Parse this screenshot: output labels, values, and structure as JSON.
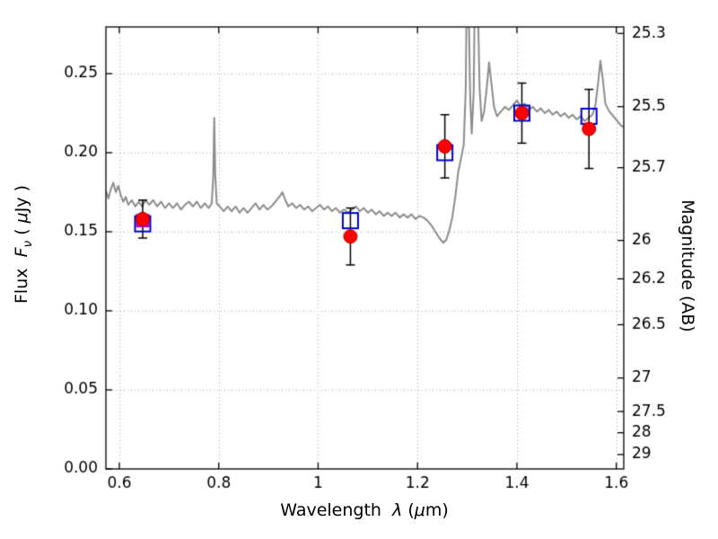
{
  "labels": {
    "left": {
      "flux": "Flux  ",
      "F": "F",
      "nu": "ν",
      "open": " ( ",
      "mu": "μ",
      "jy": "Jy )"
    },
    "bottom": {
      "wavelength": "Wavelength  ",
      "lambda": "λ",
      "open": " (",
      "mu": "μ",
      "m": "m)"
    },
    "right": "Magnitude (AB)"
  },
  "chart_data": {
    "type": "line",
    "title": "",
    "xlabel": "Wavelength λ (μm)",
    "ylabel_left": "Flux Fν ( μJy )",
    "ylabel_right": "Magnitude (AB)",
    "grid": true,
    "xlim": [
      0.573,
      1.615
    ],
    "ylim_flux": [
      0,
      0.2795
    ],
    "x_ticks": {
      "values": [
        0.6,
        0.8,
        1.0,
        1.2,
        1.4,
        1.6
      ],
      "labels": [
        "0.6",
        "0.8",
        "1",
        "1.2",
        "1.4",
        "1.6"
      ]
    },
    "y_ticks_left": {
      "values": [
        0.0,
        0.05,
        0.1,
        0.15,
        0.2,
        0.25
      ],
      "labels": [
        "0.00",
        "0.05",
        "0.10",
        "0.15",
        "0.20",
        "0.25"
      ]
    },
    "y_ticks_right": {
      "magnitudes": [
        25.3,
        25.5,
        25.7,
        26,
        26.2,
        26.5,
        27,
        27.5,
        28,
        29
      ],
      "labels": [
        "25.3",
        "25.5",
        "25.7",
        "26",
        "26.2",
        "26.5",
        "27",
        "27.5",
        "28",
        "29"
      ],
      "flux_values": [
        0.2754,
        0.2291,
        0.1905,
        0.1445,
        0.1202,
        0.0912,
        0.0575,
        0.0363,
        0.0229,
        0.0091
      ]
    },
    "series": {
      "spectrum": {
        "name": "gray model spectrum line",
        "color": "#8c8c8c",
        "line_width": 2,
        "points": [
          [
            0.573,
            0.176
          ],
          [
            0.578,
            0.171
          ],
          [
            0.583,
            0.177
          ],
          [
            0.588,
            0.181
          ],
          [
            0.593,
            0.175
          ],
          [
            0.598,
            0.179
          ],
          [
            0.603,
            0.173
          ],
          [
            0.608,
            0.169
          ],
          [
            0.613,
            0.172
          ],
          [
            0.618,
            0.167
          ],
          [
            0.625,
            0.17
          ],
          [
            0.632,
            0.166
          ],
          [
            0.639,
            0.169
          ],
          [
            0.646,
            0.166
          ],
          [
            0.653,
            0.17
          ],
          [
            0.66,
            0.167
          ],
          [
            0.668,
            0.17
          ],
          [
            0.676,
            0.166
          ],
          [
            0.684,
            0.169
          ],
          [
            0.692,
            0.165
          ],
          [
            0.7,
            0.168
          ],
          [
            0.708,
            0.165
          ],
          [
            0.716,
            0.168
          ],
          [
            0.724,
            0.164
          ],
          [
            0.732,
            0.167
          ],
          [
            0.74,
            0.169
          ],
          [
            0.748,
            0.166
          ],
          [
            0.756,
            0.169
          ],
          [
            0.764,
            0.165
          ],
          [
            0.772,
            0.168
          ],
          [
            0.78,
            0.165
          ],
          [
            0.786,
            0.168
          ],
          [
            0.789,
            0.185
          ],
          [
            0.791,
            0.222
          ],
          [
            0.793,
            0.186
          ],
          [
            0.796,
            0.168
          ],
          [
            0.802,
            0.166
          ],
          [
            0.81,
            0.163
          ],
          [
            0.818,
            0.166
          ],
          [
            0.826,
            0.163
          ],
          [
            0.834,
            0.166
          ],
          [
            0.842,
            0.162
          ],
          [
            0.85,
            0.165
          ],
          [
            0.858,
            0.162
          ],
          [
            0.866,
            0.165
          ],
          [
            0.874,
            0.168
          ],
          [
            0.882,
            0.164
          ],
          [
            0.89,
            0.167
          ],
          [
            0.898,
            0.164
          ],
          [
            0.906,
            0.166
          ],
          [
            0.914,
            0.169
          ],
          [
            0.922,
            0.172
          ],
          [
            0.928,
            0.175
          ],
          [
            0.934,
            0.17
          ],
          [
            0.94,
            0.166
          ],
          [
            0.948,
            0.168
          ],
          [
            0.956,
            0.165
          ],
          [
            0.964,
            0.167
          ],
          [
            0.972,
            0.164
          ],
          [
            0.98,
            0.166
          ],
          [
            0.988,
            0.163
          ],
          [
            0.996,
            0.165
          ],
          [
            1.004,
            0.167
          ],
          [
            1.012,
            0.164
          ],
          [
            1.02,
            0.166
          ],
          [
            1.028,
            0.163
          ],
          [
            1.036,
            0.165
          ],
          [
            1.044,
            0.162
          ],
          [
            1.052,
            0.164
          ],
          [
            1.06,
            0.162
          ],
          [
            1.068,
            0.164
          ],
          [
            1.076,
            0.166
          ],
          [
            1.084,
            0.163
          ],
          [
            1.092,
            0.165
          ],
          [
            1.1,
            0.162
          ],
          [
            1.108,
            0.164
          ],
          [
            1.116,
            0.161
          ],
          [
            1.124,
            0.163
          ],
          [
            1.132,
            0.16
          ],
          [
            1.14,
            0.162
          ],
          [
            1.148,
            0.16
          ],
          [
            1.156,
            0.162
          ],
          [
            1.164,
            0.159
          ],
          [
            1.172,
            0.161
          ],
          [
            1.18,
            0.159
          ],
          [
            1.188,
            0.161
          ],
          [
            1.196,
            0.158
          ],
          [
            1.204,
            0.16
          ],
          [
            1.212,
            0.159
          ],
          [
            1.22,
            0.157
          ],
          [
            1.228,
            0.154
          ],
          [
            1.236,
            0.15
          ],
          [
            1.244,
            0.146
          ],
          [
            1.252,
            0.143
          ],
          [
            1.258,
            0.145
          ],
          [
            1.264,
            0.151
          ],
          [
            1.27,
            0.159
          ],
          [
            1.276,
            0.172
          ],
          [
            1.282,
            0.188
          ],
          [
            1.288,
            0.197
          ],
          [
            1.293,
            0.205
          ],
          [
            1.297,
            0.24
          ],
          [
            1.3,
            0.33
          ],
          [
            1.303,
            0.292
          ],
          [
            1.306,
            0.235
          ],
          [
            1.309,
            0.212
          ],
          [
            1.313,
            0.238
          ],
          [
            1.317,
            0.345
          ],
          [
            1.321,
            0.3
          ],
          [
            1.325,
            0.24
          ],
          [
            1.329,
            0.22
          ],
          [
            1.334,
            0.226
          ],
          [
            1.339,
            0.24
          ],
          [
            1.344,
            0.257
          ],
          [
            1.349,
            0.243
          ],
          [
            1.354,
            0.229
          ],
          [
            1.36,
            0.223
          ],
          [
            1.368,
            0.226
          ],
          [
            1.376,
            0.229
          ],
          [
            1.384,
            0.227
          ],
          [
            1.392,
            0.23
          ],
          [
            1.4,
            0.233
          ],
          [
            1.408,
            0.229
          ],
          [
            1.416,
            0.231
          ],
          [
            1.424,
            0.227
          ],
          [
            1.432,
            0.229
          ],
          [
            1.44,
            0.226
          ],
          [
            1.448,
            0.228
          ],
          [
            1.456,
            0.225
          ],
          [
            1.464,
            0.227
          ],
          [
            1.472,
            0.224
          ],
          [
            1.48,
            0.226
          ],
          [
            1.488,
            0.223
          ],
          [
            1.496,
            0.225
          ],
          [
            1.504,
            0.222
          ],
          [
            1.512,
            0.224
          ],
          [
            1.52,
            0.221
          ],
          [
            1.528,
            0.223
          ],
          [
            1.536,
            0.22
          ],
          [
            1.544,
            0.222
          ],
          [
            1.552,
            0.224
          ],
          [
            1.558,
            0.23
          ],
          [
            1.563,
            0.243
          ],
          [
            1.568,
            0.258
          ],
          [
            1.573,
            0.246
          ],
          [
            1.578,
            0.231
          ],
          [
            1.586,
            0.226
          ],
          [
            1.594,
            0.223
          ],
          [
            1.602,
            0.22
          ],
          [
            1.61,
            0.217
          ],
          [
            1.615,
            0.216
          ]
        ]
      },
      "red_circles": {
        "name": "red filled circles with black error bars",
        "marker": "filled-circle",
        "color": "#ff0000",
        "edge_color": "#b00000",
        "x": [
          0.647,
          1.065,
          1.255,
          1.41,
          1.545
        ],
        "y": [
          0.158,
          0.147,
          0.204,
          0.225,
          0.215
        ],
        "yerr": [
          0.012,
          0.018,
          0.02,
          0.019,
          0.025
        ]
      },
      "blue_squares": {
        "name": "blue open squares",
        "marker": "open-square",
        "color": "#0000cd",
        "x": [
          0.647,
          1.065,
          1.255,
          1.41,
          1.545
        ],
        "y": [
          0.155,
          0.157,
          0.2,
          0.225,
          0.223
        ]
      },
      "magenta_square": {
        "name": "magenta filled square",
        "marker": "filled-square",
        "color": "#c000c0",
        "x": [
          0.647
        ],
        "y": [
          0.157
        ]
      }
    }
  }
}
